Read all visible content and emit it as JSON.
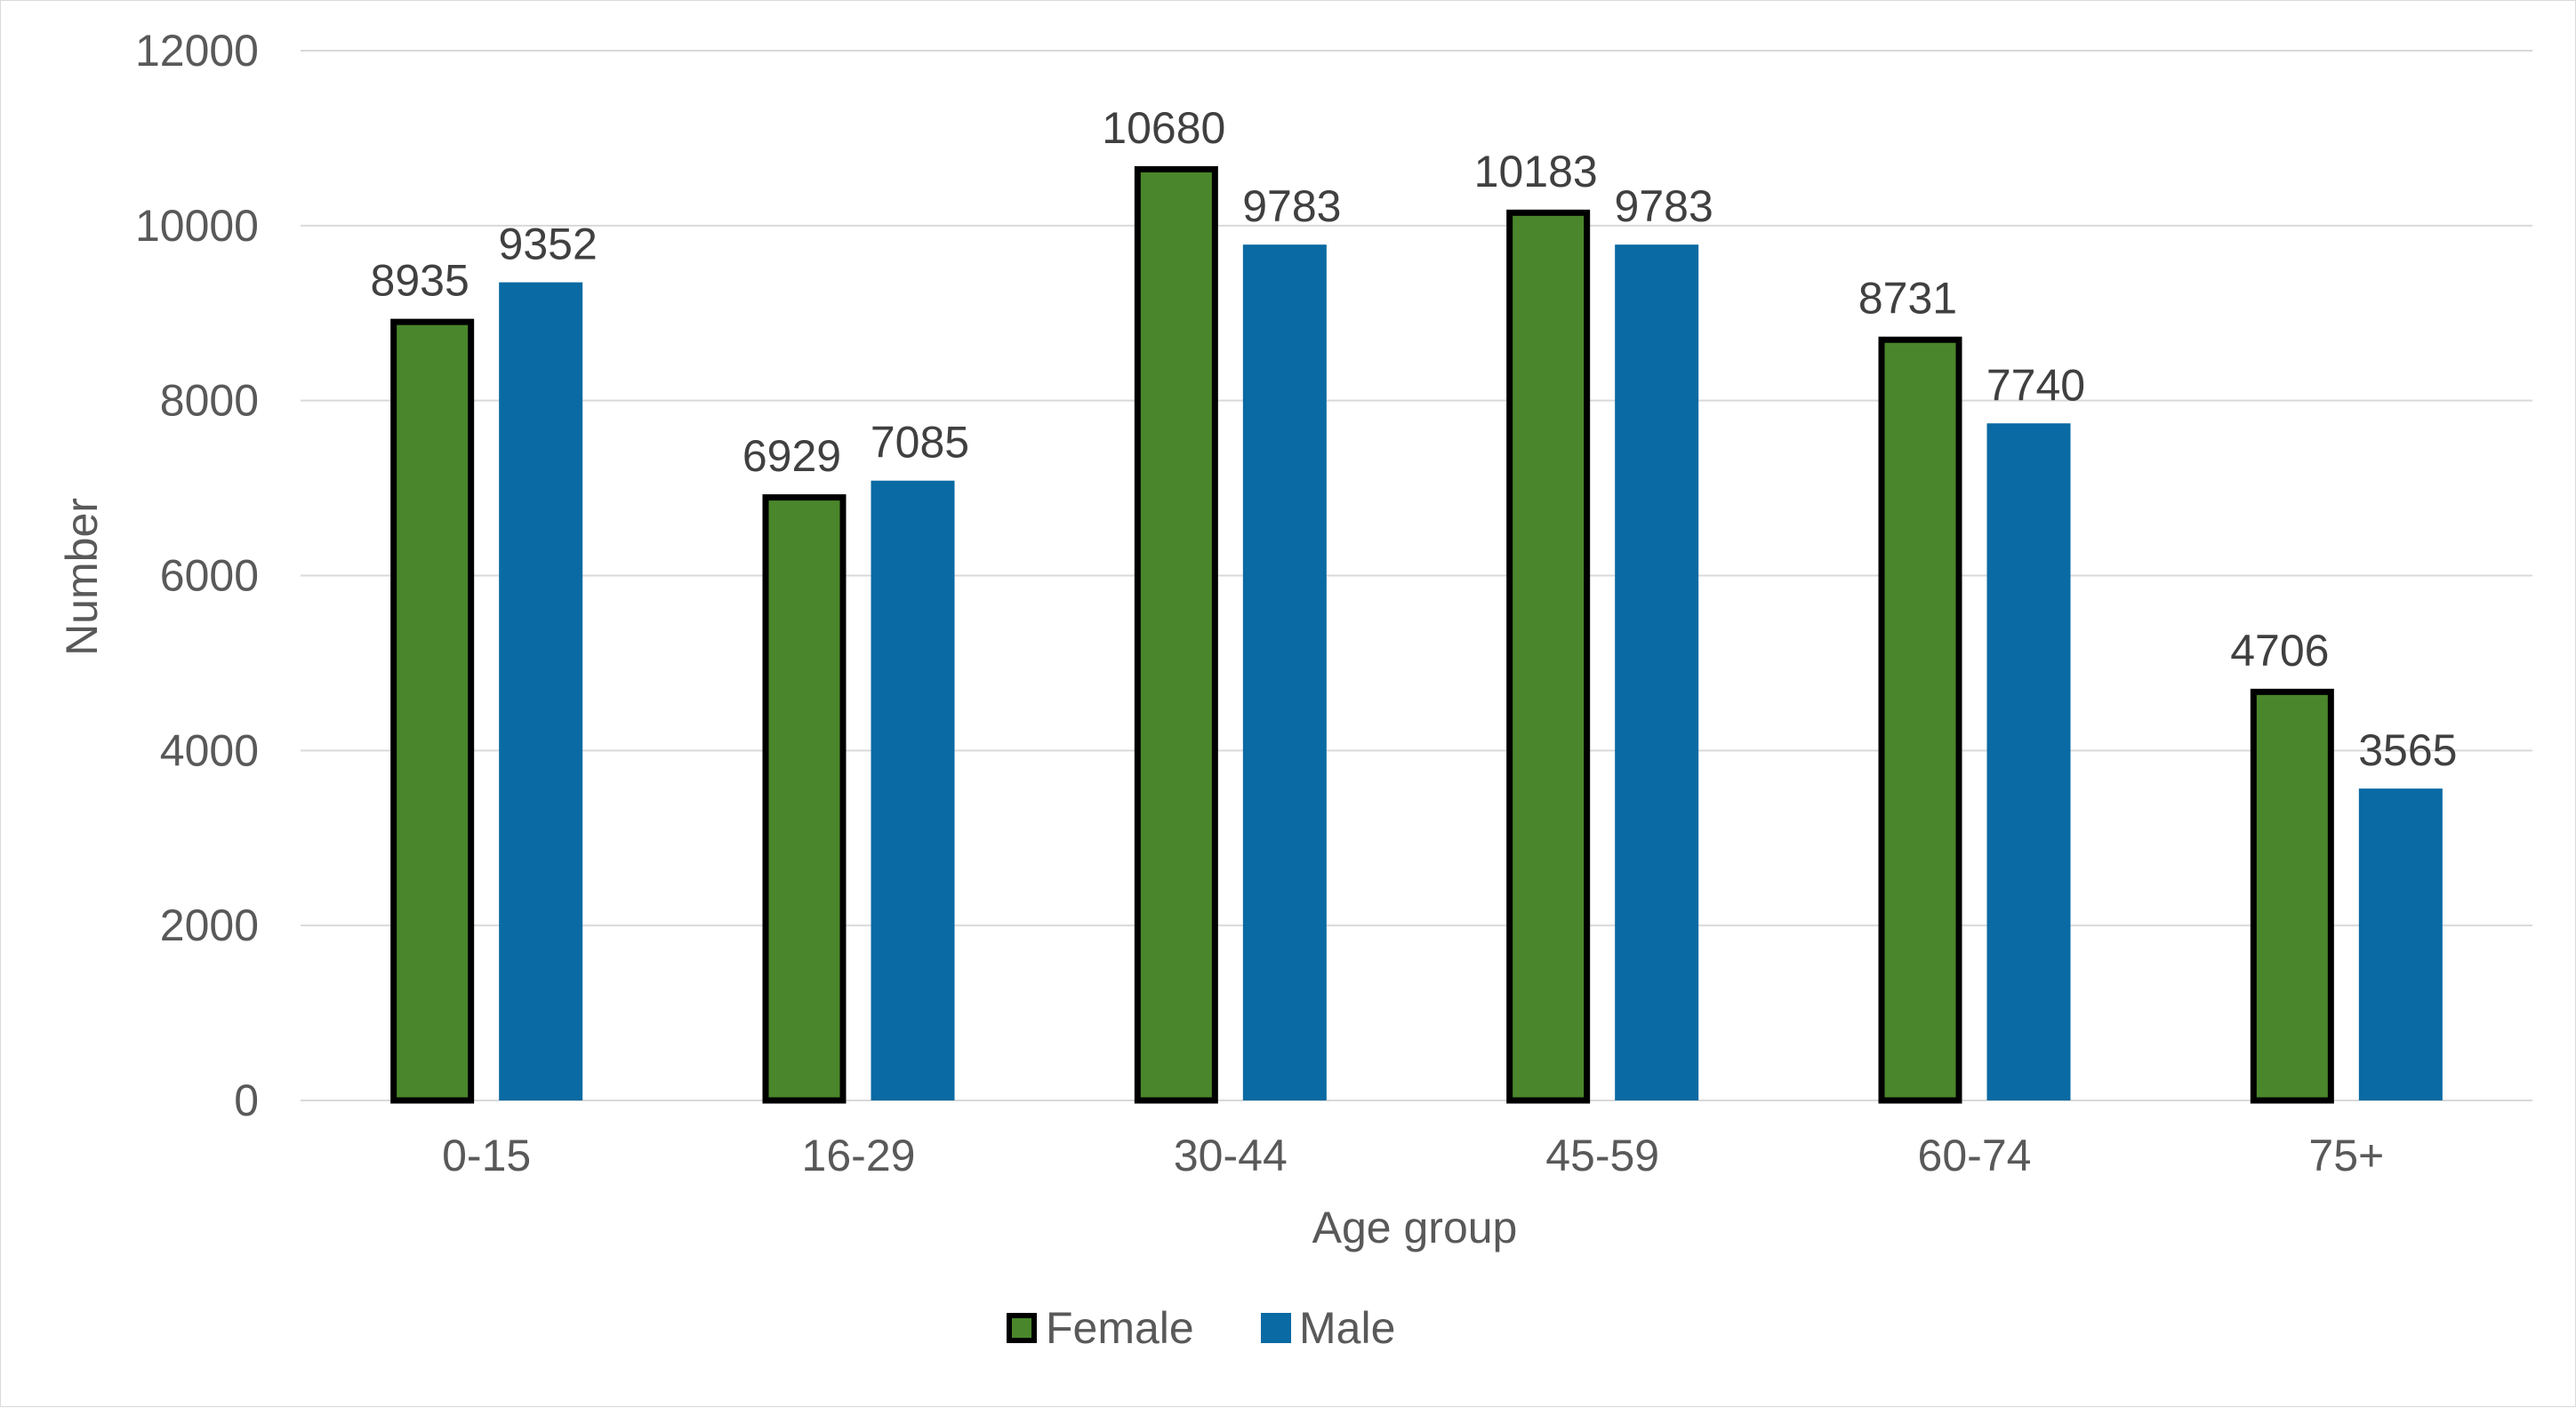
{
  "chart_data": {
    "type": "bar",
    "title": "",
    "xlabel": "Age group",
    "ylabel": "Number",
    "categories": [
      "0-15",
      "16-29",
      "30-44",
      "45-59",
      "60-74",
      "75+"
    ],
    "series": [
      {
        "name": "Female",
        "values": [
          8935,
          6929,
          10680,
          10183,
          8731,
          4706
        ],
        "color": "#4a862b",
        "outline": "#000000"
      },
      {
        "name": "Male",
        "values": [
          9352,
          7085,
          9783,
          9783,
          7740,
          3565
        ],
        "color": "#0a6aa3"
      }
    ],
    "ylim": [
      0,
      12000
    ],
    "yticks": [
      0,
      2000,
      4000,
      6000,
      8000,
      10000,
      12000
    ],
    "grid": true,
    "gridline_color": "#d9d9d9",
    "legend_position": "bottom-center"
  }
}
